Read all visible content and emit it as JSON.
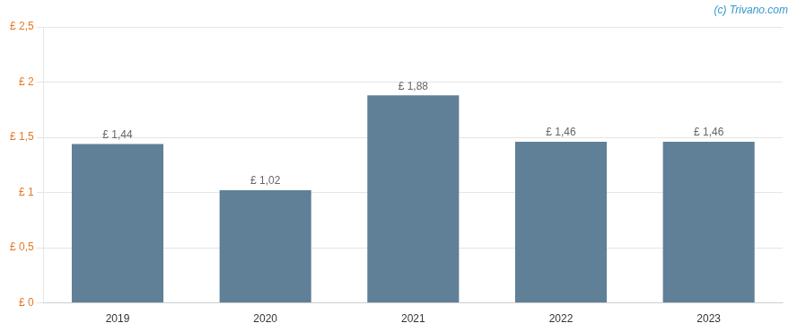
{
  "chart_data": {
    "type": "bar",
    "categories": [
      "2019",
      "2020",
      "2021",
      "2022",
      "2023"
    ],
    "values": [
      1.44,
      1.02,
      1.88,
      1.46,
      1.46
    ],
    "value_labels": [
      "£ 1,44",
      "£ 1,02",
      "£ 1,88",
      "£ 1,46",
      "£ 1,46"
    ],
    "data_labels": true,
    "color": "#5f8097",
    "ylim": [
      0,
      2.5
    ],
    "yticks": [
      {
        "value": 0,
        "label": "£ 0"
      },
      {
        "value": 0.5,
        "label": "£ 0,5"
      },
      {
        "value": 1.0,
        "label": "£ 1"
      },
      {
        "value": 1.5,
        "label": "£ 1,5"
      },
      {
        "value": 2.0,
        "label": "£ 2"
      },
      {
        "value": 2.5,
        "label": "£ 2,5"
      }
    ],
    "grid": true,
    "annotations": [
      "(c) Trivano.com"
    ]
  }
}
